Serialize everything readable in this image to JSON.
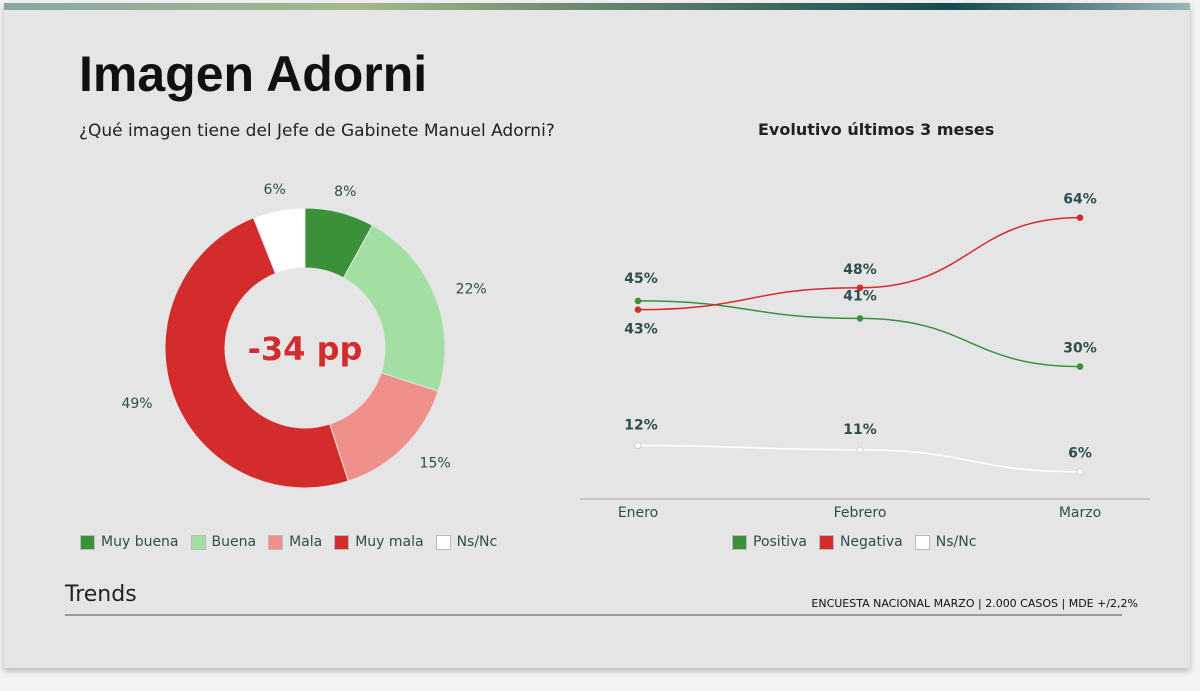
{
  "title": "Imagen Adorni",
  "subtitle": "¿Qué imagen tiene del Jefe de Gabinete Manuel Adorni?",
  "brand": "Trends",
  "footer": "ENCUESTA NACIONAL MARZO | 2.000 CASOS | MDE +/2,2%",
  "chart_data": [
    {
      "type": "pie",
      "variant": "donut",
      "center_label": "-34 pp",
      "categories": [
        "Muy buena",
        "Buena",
        "Mala",
        "Muy mala",
        "Ns/Nc"
      ],
      "values": [
        8,
        22,
        15,
        49,
        6
      ],
      "labels": [
        "8%",
        "22%",
        "15%",
        "49%",
        "6%"
      ],
      "colors": [
        "#3a913a",
        "#a3dfa3",
        "#f0908a",
        "#d42c2c",
        "#ffffff"
      ],
      "legend": "bottom"
    },
    {
      "type": "line",
      "title": "Evolutivo últimos 3 meses",
      "categories": [
        "Enero",
        "Febrero",
        "Marzo"
      ],
      "series": [
        {
          "name": "Positiva",
          "values": [
            45,
            41,
            30
          ],
          "color": "#3a913a"
        },
        {
          "name": "Negativa",
          "values": [
            43,
            48,
            64
          ],
          "color": "#d42c2c"
        },
        {
          "name": "Ns/Nc",
          "values": [
            12,
            11,
            6
          ],
          "color": "#ffffff"
        }
      ],
      "ylim": [
        0,
        70
      ],
      "legend": "bottom"
    }
  ]
}
